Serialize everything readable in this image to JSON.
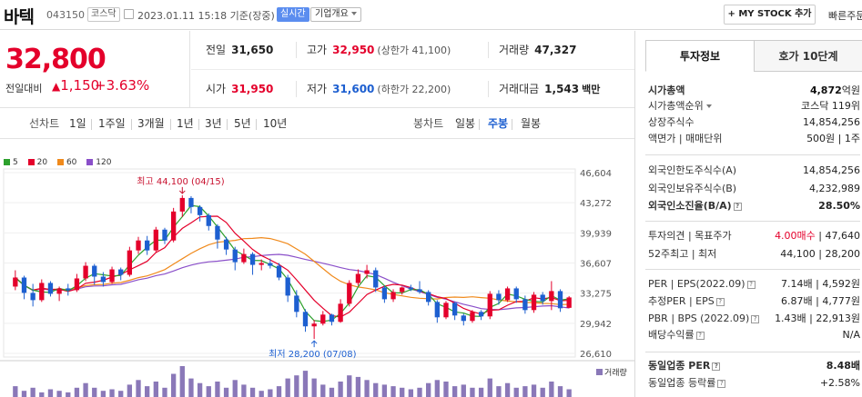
{
  "header": {
    "name": "바텍",
    "code": "043150",
    "market": "코스닥",
    "datetime": "2023.01.11 15:18 기준(장중)",
    "live": "실시간",
    "company_info": "기업개요",
    "mystock": "+ MY STOCK 추가",
    "quick": "빠른주문"
  },
  "price": {
    "current": "32,800",
    "diff_label": "전일대비",
    "diff_value": "1,150",
    "diff_pct": "+3.63%"
  },
  "stats": {
    "prev_label": "전일",
    "prev": "31,650",
    "high_label": "고가",
    "high": "32,950",
    "upper_limit": "(상한가 41,100)",
    "volume_label": "거래량",
    "volume": "47,327",
    "open_label": "시가",
    "open": "31,950",
    "low_label": "저가",
    "low": "31,600",
    "lower_limit": "(하한가 22,200)",
    "amount_label": "거래대금",
    "amount": "1,543",
    "amount_unit": "백만"
  },
  "periods": {
    "line_label": "선차트",
    "items": [
      "1일",
      "1주일",
      "3개월",
      "1년",
      "3년",
      "5년",
      "10년"
    ],
    "candle_label": "봉차트",
    "candle_items": [
      "일봉",
      "주봉",
      "월봉"
    ],
    "active_candle": "주봉"
  },
  "right": {
    "tab1": "투자정보",
    "tab2": "호가 10단계",
    "market_cap_label": "시가총액",
    "market_cap": "4,872",
    "market_cap_unit": "억원",
    "rank_label": "시가총액순위",
    "rank": "코스닥 119위",
    "shares_label": "상장주식수",
    "shares": "14,854,256",
    "par_label": "액면가 | 매매단위",
    "par": "500원 | 1주",
    "foreign_limit_label": "외국인한도주식수(A)",
    "foreign_limit": "14,854,256",
    "foreign_hold_label": "외국인보유주식수(B)",
    "foreign_hold": "4,232,989",
    "foreign_rate_label": "외국인소진율(B/A)",
    "foreign_rate": "28.50%",
    "opinion_label": "투자의견 | 목표주가",
    "opinion": "4.00매수",
    "target": "47,640",
    "w52_label": "52주최고 | 최저",
    "w52_high": "44,100",
    "w52_low": "28,200",
    "per_label": "PER | EPS(2022.09)",
    "per": "7.14배",
    "eps": "4,592원",
    "eper_label": "추정PER | EPS",
    "eper": "6.87배",
    "eeps": "4,777원",
    "pbr_label": "PBR | BPS (2022.09)",
    "pbr": "1.43배",
    "bps": "22,913원",
    "div_label": "배당수익률",
    "div": "N/A",
    "sector_per_label": "동일업종 PER",
    "sector_per": "8.48배",
    "sector_rate_label": "동일업종 등락률",
    "sector_rate": "+2.58%"
  },
  "chart_data": {
    "type": "candlestick",
    "legend": [
      {
        "name": "5",
        "color": "#2ca02c"
      },
      {
        "name": "20",
        "color": "#e4002b"
      },
      {
        "name": "60",
        "color": "#f08a1c"
      },
      {
        "name": "120",
        "color": "#8a4fc9"
      }
    ],
    "yticks": [
      "46,604",
      "43,272",
      "39,939",
      "36,607",
      "33,275",
      "29,942",
      "26,610"
    ],
    "ylim": [
      26610,
      46604
    ],
    "annotations": {
      "high": "최고 44,100 (04/15)",
      "low": "최저 28,200 (07/08)"
    },
    "volume_label": "거래량",
    "candles": [
      [
        34000,
        35800,
        33600,
        35000
      ],
      [
        35000,
        35200,
        32600,
        33300
      ],
      [
        33300,
        34300,
        31800,
        32500
      ],
      [
        32500,
        34800,
        32300,
        34400
      ],
      [
        34400,
        34600,
        32900,
        33200
      ],
      [
        33200,
        34000,
        32400,
        33800
      ],
      [
        33800,
        34300,
        33000,
        33600
      ],
      [
        33600,
        35400,
        33400,
        34900
      ],
      [
        34900,
        36700,
        34600,
        36300
      ],
      [
        36300,
        36500,
        34200,
        35100
      ],
      [
        35100,
        35600,
        34000,
        34500
      ],
      [
        34500,
        36200,
        34300,
        35900
      ],
      [
        35900,
        36100,
        34700,
        35300
      ],
      [
        35300,
        38400,
        35100,
        38000
      ],
      [
        38000,
        39500,
        37600,
        39100
      ],
      [
        39100,
        39600,
        37500,
        38000
      ],
      [
        38000,
        40600,
        37800,
        40300
      ],
      [
        40300,
        40500,
        38700,
        39100
      ],
      [
        39100,
        42700,
        38900,
        42300
      ],
      [
        42300,
        44100,
        41700,
        43800
      ],
      [
        43800,
        44000,
        42100,
        42800
      ],
      [
        42800,
        43000,
        41200,
        41900
      ],
      [
        41900,
        42100,
        40200,
        40700
      ],
      [
        40700,
        40900,
        38200,
        39200
      ],
      [
        39200,
        39500,
        37500,
        38100
      ],
      [
        38100,
        38400,
        35800,
        36700
      ],
      [
        36700,
        38200,
        36500,
        37600
      ],
      [
        37600,
        37800,
        35300,
        36400
      ],
      [
        36400,
        37000,
        35800,
        36600
      ],
      [
        36600,
        37100,
        36000,
        36300
      ],
      [
        36300,
        36600,
        34700,
        35000
      ],
      [
        35000,
        35300,
        32300,
        33000
      ],
      [
        33000,
        33600,
        30600,
        31200
      ],
      [
        31200,
        31500,
        29000,
        29600
      ],
      [
        29600,
        30300,
        28200,
        29900
      ],
      [
        29900,
        31300,
        29700,
        30900
      ],
      [
        30900,
        31000,
        29700,
        30100
      ],
      [
        30100,
        32600,
        30000,
        32100
      ],
      [
        32100,
        34700,
        31800,
        34400
      ],
      [
        34400,
        35900,
        34100,
        35400
      ],
      [
        35400,
        36400,
        34900,
        35800
      ],
      [
        35800,
        36100,
        33400,
        33900
      ],
      [
        33900,
        34100,
        32200,
        32600
      ],
      [
        32600,
        33700,
        32300,
        33400
      ],
      [
        33400,
        34000,
        33100,
        33900
      ],
      [
        33900,
        34200,
        33500,
        33700
      ],
      [
        33700,
        34600,
        33200,
        33400
      ],
      [
        33400,
        33600,
        31900,
        32300
      ],
      [
        32300,
        32500,
        30000,
        30600
      ],
      [
        30600,
        32400,
        30400,
        32200
      ],
      [
        32200,
        32300,
        30300,
        30800
      ],
      [
        30800,
        31000,
        29700,
        30200
      ],
      [
        30200,
        31400,
        30000,
        31200
      ],
      [
        31200,
        31400,
        30300,
        30700
      ],
      [
        30700,
        33500,
        30400,
        33200
      ],
      [
        33200,
        33600,
        32000,
        32500
      ],
      [
        32500,
        34000,
        32300,
        33800
      ],
      [
        33800,
        34000,
        32200,
        32600
      ],
      [
        32600,
        33000,
        31000,
        31400
      ],
      [
        31400,
        33400,
        31100,
        33100
      ],
      [
        33100,
        33400,
        32000,
        32400
      ],
      [
        32400,
        34600,
        31400,
        33500
      ],
      [
        33500,
        33700,
        31200,
        31600
      ],
      [
        31650,
        32950,
        31600,
        32800
      ]
    ],
    "volumes": [
      0.35,
      0.2,
      0.3,
      0.15,
      0.25,
      0.2,
      0.15,
      0.3,
      0.45,
      0.3,
      0.2,
      0.25,
      0.2,
      0.4,
      0.55,
      0.35,
      0.5,
      0.3,
      0.75,
      1.0,
      0.6,
      0.45,
      0.35,
      0.5,
      0.3,
      0.55,
      0.4,
      0.3,
      0.2,
      0.25,
      0.35,
      0.6,
      0.7,
      0.85,
      0.6,
      0.4,
      0.3,
      0.5,
      0.7,
      0.65,
      0.55,
      0.45,
      0.4,
      0.35,
      0.3,
      0.25,
      0.3,
      0.45,
      0.55,
      0.5,
      0.35,
      0.4,
      0.3,
      0.3,
      0.6,
      0.35,
      0.45,
      0.3,
      0.35,
      0.4,
      0.3,
      0.5,
      0.35,
      0.25
    ]
  }
}
